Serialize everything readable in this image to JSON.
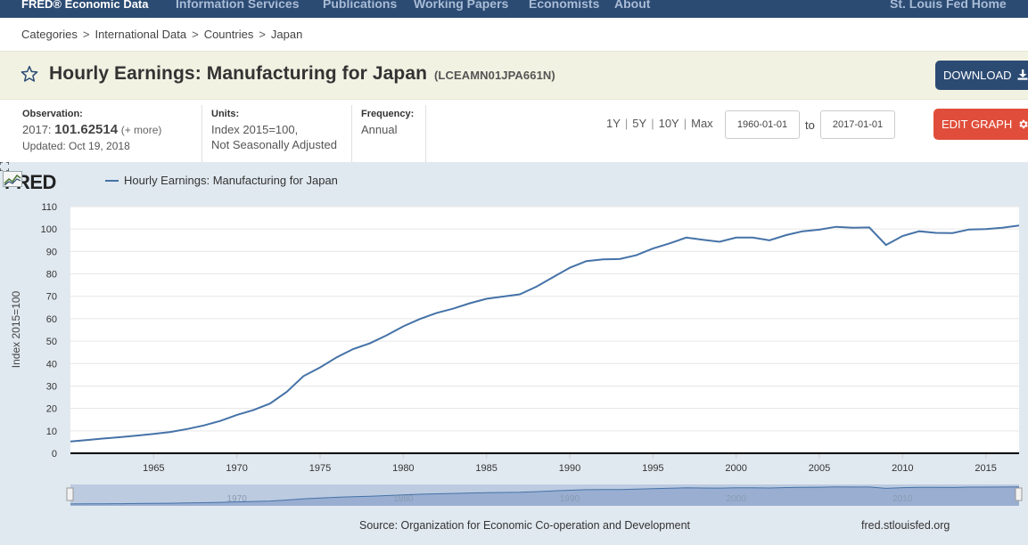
{
  "topnav": {
    "brand": "FRED® Economic Data",
    "items": [
      "Information Services",
      "Publications",
      "Working Papers",
      "Economists",
      "About"
    ],
    "right": "St. Louis Fed Home"
  },
  "breadcrumb": [
    "Categories",
    "International Data",
    "Countries",
    "Japan"
  ],
  "header": {
    "title": "Hourly Earnings: Manufacturing for Japan",
    "series_id": "(LCEAMN01JPA661N)",
    "download_label": "DOWNLOAD"
  },
  "observation": {
    "label": "Observation:",
    "year": "2017:",
    "value": "101.62514",
    "more": "(+ more)",
    "updated": "Updated: Oct 19, 2018"
  },
  "units": {
    "label": "Units:",
    "line1": "Index 2015=100,",
    "line2": "Not Seasonally Adjusted"
  },
  "frequency": {
    "label": "Frequency:",
    "value": "Annual"
  },
  "range_buttons": [
    "1Y",
    "5Y",
    "10Y",
    "Max"
  ],
  "date_range": {
    "start": "1960-01-01",
    "to_label": "to",
    "end": "2017-01-01"
  },
  "edit_label": "EDIT GRAPH",
  "graph": {
    "logo": "FRED",
    "source": "Source: Organization for Economic Co-operation and Development",
    "site": "fred.stlouisfed.org"
  },
  "colors": {
    "nav_bg": "#2c4b73",
    "series_line": "#4572a7",
    "edit_button": "#e04e3b",
    "title_bar": "#f1f2e2"
  },
  "chart_data": {
    "type": "line",
    "ylabel": "Index 2015=100",
    "ylim": [
      0,
      110
    ],
    "xlim": [
      1960,
      2017
    ],
    "y_ticks": [
      0,
      10,
      20,
      30,
      40,
      50,
      60,
      70,
      80,
      90,
      100,
      110
    ],
    "x_ticks": [
      1965,
      1970,
      1975,
      1980,
      1985,
      1990,
      1995,
      2000,
      2005,
      2010,
      2015
    ],
    "navigator_ticks": [
      1970,
      1980,
      1990,
      2000,
      2010
    ],
    "series": [
      {
        "name": "Hourly Earnings: Manufacturing for Japan",
        "x": [
          1960,
          1961,
          1962,
          1963,
          1964,
          1965,
          1966,
          1967,
          1968,
          1969,
          1970,
          1971,
          1972,
          1973,
          1974,
          1975,
          1976,
          1977,
          1978,
          1979,
          1980,
          1981,
          1982,
          1983,
          1984,
          1985,
          1986,
          1987,
          1988,
          1989,
          1990,
          1991,
          1992,
          1993,
          1994,
          1995,
          1996,
          1997,
          1998,
          1999,
          2000,
          2001,
          2002,
          2003,
          2004,
          2005,
          2006,
          2007,
          2008,
          2009,
          2010,
          2011,
          2012,
          2013,
          2014,
          2015,
          2016,
          2017
        ],
        "y": [
          5.3,
          5.9,
          6.6,
          7.2,
          7.9,
          8.6,
          9.5,
          10.8,
          12.4,
          14.4,
          17.1,
          19.3,
          22.2,
          27.4,
          34.4,
          38.3,
          42.8,
          46.5,
          49.1,
          52.6,
          56.6,
          59.9,
          62.6,
          64.5,
          66.9,
          68.9,
          69.9,
          70.9,
          74.3,
          78.5,
          82.7,
          85.7,
          86.5,
          86.6,
          88.3,
          91.3,
          93.6,
          96.2,
          95.2,
          94.3,
          96.2,
          96.2,
          95.0,
          97.3,
          99.0,
          99.7,
          101.0,
          100.6,
          100.7,
          92.9,
          96.9,
          99.0,
          98.3,
          98.2,
          99.8,
          100.0,
          100.6,
          101.6
        ]
      }
    ]
  }
}
